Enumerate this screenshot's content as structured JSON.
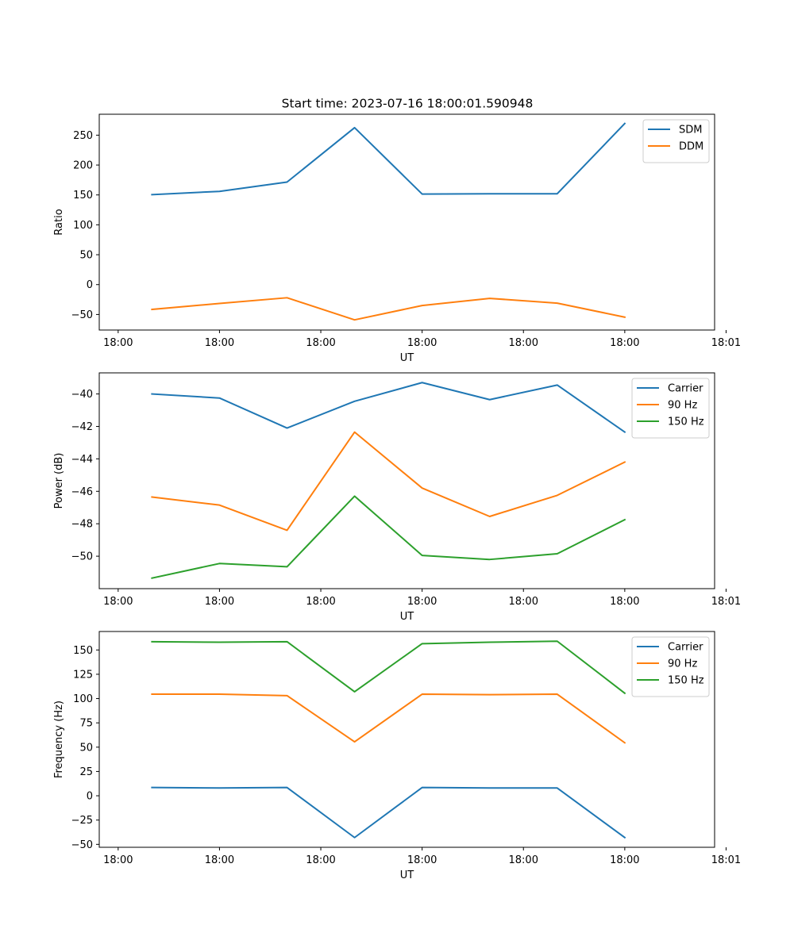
{
  "figure": {
    "title": "Start time: 2023-07-16 18:00:01.590948"
  },
  "chart_data": [
    {
      "type": "line",
      "title": "Start time: 2023-07-16 18:00:01.590948",
      "xlabel": "UT",
      "ylabel": "Ratio",
      "x": [
        1,
        2,
        3,
        4,
        5,
        6,
        7,
        8
      ],
      "xlim": [
        0.22,
        9.33
      ],
      "ylim": [
        -76,
        285
      ],
      "xticks": [
        0.5,
        2,
        3.5,
        5,
        6.5,
        8,
        9.5
      ],
      "xticklabels": [
        "18:00",
        "18:00",
        "18:00",
        "18:00",
        "18:00",
        "18:00",
        "18:01"
      ],
      "yticks": [
        -50,
        0,
        50,
        100,
        150,
        200,
        250
      ],
      "yticklabels": [
        "−50",
        "0",
        "50",
        "100",
        "150",
        "200",
        "250"
      ],
      "legend_position": "top-right",
      "grid": false,
      "series": [
        {
          "name": "SDM",
          "color": "#1f77b4",
          "values": [
            150.5,
            156.0,
            171.5,
            262.5,
            151.5,
            152.0,
            152.0,
            269.5
          ]
        },
        {
          "name": "DDM",
          "color": "#ff7f0e",
          "values": [
            -41.5,
            -31.5,
            -22.0,
            -59.0,
            -35.0,
            -23.0,
            -31.0,
            -54.5
          ]
        }
      ]
    },
    {
      "type": "line",
      "title": "",
      "xlabel": "UT",
      "ylabel": "Power (dB)",
      "x": [
        1,
        2,
        3,
        4,
        5,
        6,
        7,
        8
      ],
      "xlim": [
        0.22,
        9.33
      ],
      "ylim": [
        -52.0,
        -38.7
      ],
      "xticks": [
        0.5,
        2,
        3.5,
        5,
        6.5,
        8,
        9.5
      ],
      "xticklabels": [
        "18:00",
        "18:00",
        "18:00",
        "18:00",
        "18:00",
        "18:00",
        "18:01"
      ],
      "yticks": [
        -50,
        -48,
        -46,
        -44,
        -42,
        -40
      ],
      "yticklabels": [
        "−50",
        "−48",
        "−46",
        "−44",
        "−42",
        "−40"
      ],
      "legend_position": "top-right",
      "grid": false,
      "series": [
        {
          "name": "Carrier",
          "color": "#1f77b4",
          "values": [
            -40.0,
            -40.25,
            -42.1,
            -40.45,
            -39.3,
            -40.35,
            -39.45,
            -42.35
          ]
        },
        {
          "name": "90 Hz",
          "color": "#ff7f0e",
          "values": [
            -46.35,
            -46.85,
            -48.4,
            -42.35,
            -45.8,
            -47.55,
            -46.25,
            -44.2
          ]
        },
        {
          "name": "150 Hz",
          "color": "#2ca02c",
          "values": [
            -51.35,
            -50.45,
            -50.65,
            -46.3,
            -49.95,
            -50.2,
            -49.85,
            -47.75
          ]
        }
      ]
    },
    {
      "type": "line",
      "title": "",
      "xlabel": "UT",
      "ylabel": "Frequency (Hz)",
      "x": [
        1,
        2,
        3,
        4,
        5,
        6,
        7,
        8
      ],
      "xlim": [
        0.22,
        9.33
      ],
      "ylim": [
        -53,
        169
      ],
      "xticks": [
        0.5,
        2,
        3.5,
        5,
        6.5,
        8,
        9.5
      ],
      "xticklabels": [
        "18:00",
        "18:00",
        "18:00",
        "18:00",
        "18:00",
        "18:00",
        "18:01"
      ],
      "yticks": [
        -50,
        -25,
        0,
        25,
        50,
        75,
        100,
        125,
        150
      ],
      "yticklabels": [
        "−50",
        "−25",
        "0",
        "25",
        "50",
        "75",
        "100",
        "125",
        "150"
      ],
      "legend_position": "top-right",
      "grid": false,
      "series": [
        {
          "name": "Carrier",
          "color": "#1f77b4",
          "values": [
            8.5,
            8.0,
            8.5,
            -43.0,
            8.5,
            8.0,
            8.0,
            -43.0
          ]
        },
        {
          "name": "90 Hz",
          "color": "#ff7f0e",
          "values": [
            104.5,
            104.5,
            103.0,
            55.5,
            104.5,
            104.0,
            104.5,
            54.5
          ]
        },
        {
          "name": "150 Hz",
          "color": "#2ca02c",
          "values": [
            158.5,
            158.0,
            158.5,
            107.0,
            156.5,
            158.0,
            159.0,
            105.5
          ]
        }
      ]
    }
  ]
}
